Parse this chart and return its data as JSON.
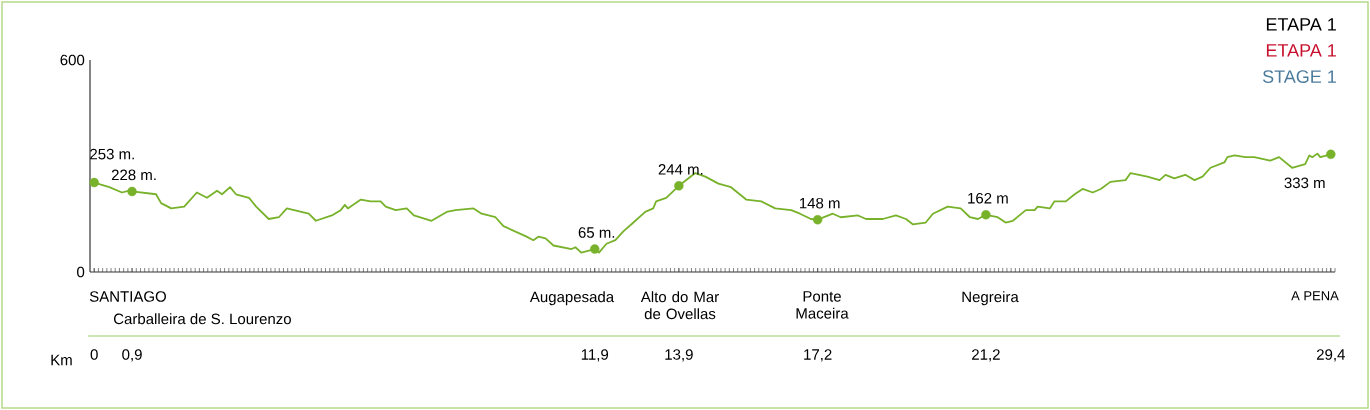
{
  "chart_data": {
    "type": "line",
    "title": "ETAPA 1",
    "subtitle": "ETAPA 1",
    "annotations": [
      "STAGE 1",
      "SANTIAGO",
      "Carballeira de S. Lourenzo",
      "Augapesada",
      "Alto do Mar de Ovellas",
      "Ponte Maceira",
      "Negreira",
      "A PENA"
    ],
    "xlabel": "Km",
    "xlim": [
      -0.1,
      29.5
    ],
    "ylim": [
      0,
      600
    ],
    "yticks": [
      0,
      600
    ],
    "xticks": [
      0,
      {
        "value": 0.9,
        "label": "0,9"
      },
      {
        "value": 11.9,
        "label": "11,9"
      },
      {
        "value": 13.9,
        "label": "13,9"
      },
      {
        "value": 17.2,
        "label": "17,2"
      },
      {
        "value": 21.2,
        "label": "21,2"
      },
      {
        "value": 29.4,
        "label": "29,4"
      }
    ],
    "series": [
      {
        "color": "#78b22b",
        "x": [
          0,
          0.36,
          0.66,
          0.83,
          0.9,
          1.47,
          1.59,
          1.83,
          2.14,
          2.44,
          2.68,
          2.92,
          3.04,
          3.23,
          3.37,
          3.68,
          3.85,
          4.15,
          4.39,
          4.58,
          5.1,
          5.27,
          5.65,
          5.86,
          5.96,
          6.03,
          6.34,
          6.57,
          6.81,
          6.93,
          7.17,
          7.43,
          7.6,
          8.02,
          8.38,
          8.59,
          9.02,
          9.21,
          9.54,
          9.73,
          10.28,
          10.44,
          10.56,
          10.73,
          10.92,
          11.35,
          11.44,
          11.58,
          11.9,
          12.0,
          12.18,
          12.39,
          12.58,
          12.82,
          13.1,
          13.29,
          13.36,
          13.6,
          13.9,
          14.29,
          14.53,
          14.84,
          15.14,
          15.5,
          15.86,
          16.19,
          16.57,
          16.78,
          17.04,
          17.2,
          17.56,
          17.75,
          18.16,
          18.35,
          18.75,
          19.06,
          19.3,
          19.46,
          19.77,
          19.94,
          20.29,
          20.6,
          20.82,
          21.01,
          21.2,
          21.48,
          21.67,
          21.84,
          22.15,
          22.36,
          22.43,
          22.72,
          22.83,
          23.1,
          23.31,
          23.5,
          23.74,
          23.93,
          24.16,
          24.52,
          24.64,
          25.04,
          25.33,
          25.47,
          25.68,
          25.94,
          26.16,
          26.35,
          26.54,
          26.87,
          26.94,
          27.11,
          27.37,
          27.58,
          27.96,
          28.17,
          28.48,
          28.79,
          28.89,
          28.96,
          29.08,
          29.15,
          29.4
        ],
        "values": [
          253,
          240,
          225,
          230,
          228,
          220,
          195,
          180,
          185,
          225,
          210,
          230,
          220,
          240,
          220,
          210,
          185,
          150,
          155,
          180,
          165,
          145,
          160,
          175,
          190,
          180,
          205,
          200,
          200,
          185,
          175,
          180,
          160,
          145,
          170,
          175,
          180,
          165,
          155,
          130,
          100,
          90,
          100,
          95,
          75,
          65,
          70,
          55,
          65,
          55,
          80,
          90,
          115,
          140,
          170,
          180,
          200,
          210,
          244,
          280,
          270,
          250,
          240,
          205,
          200,
          180,
          175,
          165,
          150,
          148,
          165,
          155,
          160,
          150,
          150,
          160,
          150,
          135,
          140,
          165,
          185,
          180,
          155,
          150,
          162,
          155,
          140,
          145,
          175,
          175,
          185,
          180,
          200,
          200,
          220,
          235,
          225,
          235,
          255,
          260,
          280,
          270,
          260,
          275,
          265,
          275,
          260,
          270,
          295,
          310,
          325,
          330,
          325,
          325,
          315,
          325,
          295,
          305,
          330,
          325,
          335,
          325,
          333
        ]
      },
      {
        "type": "scatter",
        "marker": "circle",
        "color": "#78b22b",
        "x": [
          0,
          0.9,
          11.9,
          13.9,
          17.2,
          21.2,
          29.4
        ],
        "values": [
          253,
          228,
          65,
          244,
          148,
          162,
          333
        ],
        "value_labels": [
          "253 m.",
          "228 m.",
          "65 m.",
          "244 m.",
          "148 m",
          "162 m",
          "333 m"
        ]
      }
    ]
  }
}
